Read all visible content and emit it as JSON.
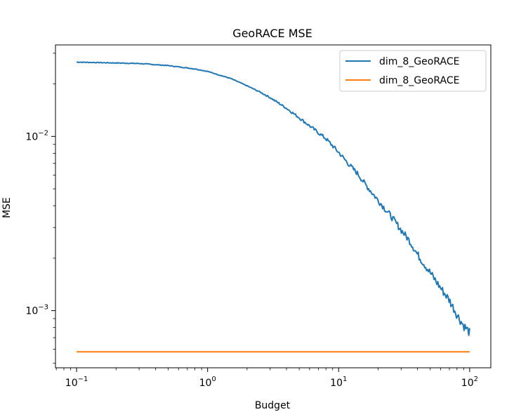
{
  "chart_data": {
    "type": "line",
    "title": "GeoRACE MSE",
    "xlabel": "Budget",
    "ylabel": "MSE",
    "xscale": "log",
    "yscale": "log",
    "xlim": [
      0.069,
      145
    ],
    "ylim": [
      0.00047,
      0.0335
    ],
    "grid": false,
    "legend_position": "top-right",
    "x_ticks": [
      {
        "value": 0.1,
        "base": "10",
        "exp": "−1"
      },
      {
        "value": 1,
        "base": "10",
        "exp": "0"
      },
      {
        "value": 10,
        "base": "10",
        "exp": "1"
      },
      {
        "value": 100,
        "base": "10",
        "exp": "2"
      }
    ],
    "y_ticks": [
      {
        "value": 0.001,
        "base": "10",
        "exp": "−3"
      },
      {
        "value": 0.01,
        "base": "10",
        "exp": "−2"
      }
    ],
    "series": [
      {
        "name": "dim_8_GeoRACE",
        "color": "#1f77b4",
        "x": [
          0.1,
          0.2,
          0.3,
          0.5,
          0.8,
          1.0,
          1.5,
          2.0,
          2.5,
          3.0,
          3.5,
          4.0,
          5.0,
          6.0,
          7.0,
          8.0,
          10.0,
          12.0,
          14.0,
          16.0,
          20.0,
          25.0,
          30.0,
          35.0,
          40.0,
          50.0,
          60.0,
          70.0,
          80.0,
          90.0,
          100.0
        ],
        "y": [
          0.0267,
          0.0264,
          0.0262,
          0.0255,
          0.0244,
          0.0236,
          0.0215,
          0.0195,
          0.018,
          0.0167,
          0.0155,
          0.0145,
          0.0128,
          0.0115,
          0.0105,
          0.0097,
          0.0081,
          0.0069,
          0.0061,
          0.0053,
          0.0043,
          0.0035,
          0.0029,
          0.0025,
          0.0021,
          0.00165,
          0.00135,
          0.00115,
          0.00095,
          0.00082,
          0.00075
        ]
      },
      {
        "name": "dim_8_GeoRACE",
        "color": "#ff7f0e",
        "x": [
          0.1,
          100.0
        ],
        "y": [
          0.00058,
          0.00058
        ]
      }
    ]
  }
}
